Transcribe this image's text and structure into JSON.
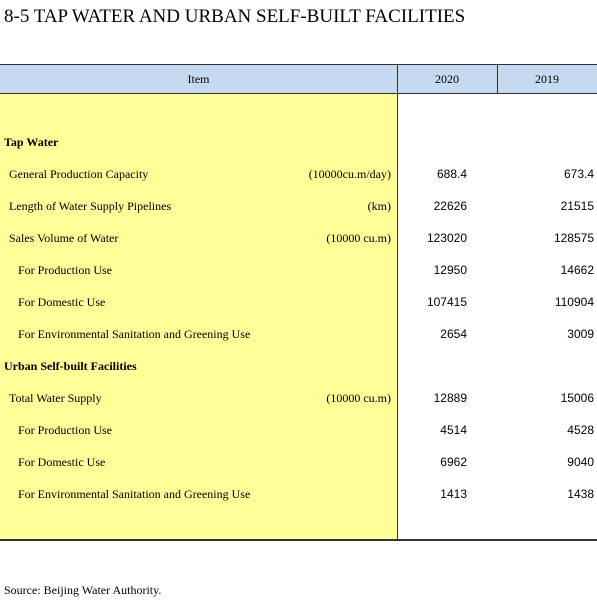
{
  "title": "8-5  TAP WATER AND URBAN SELF-BUILT FACILITIES",
  "table": {
    "header": [
      "Item",
      "2020",
      "2019"
    ],
    "sections": [
      {
        "title": "Tap Water",
        "items": [
          {
            "label": "General Production Capacity",
            "unit": "(10000cu.m/day)",
            "values": [
              688.4,
              673.4
            ]
          },
          {
            "label": "Length of Water Supply Pipelines",
            "unit": "(km)",
            "values": [
              22626,
              21515
            ]
          },
          {
            "label": "Sales Volume  of Water",
            "unit": "(10000 cu.m)",
            "values": [
              123020,
              128575
            ],
            "sub": [
              {
                "label": "For Production Use",
                "values": [
                  12950,
                  14662
                ]
              },
              {
                "label": "For Domestic Use",
                "values": [
                  107415,
                  110904
                ]
              },
              {
                "label": "For Environmental Sanitation and Greening Use",
                "values": [
                  2654,
                  3009
                ]
              }
            ]
          }
        ]
      },
      {
        "title": "Urban Self-built Facilities",
        "items": [
          {
            "label": "Total Water Supply",
            "unit": "(10000 cu.m)",
            "values": [
              12889,
              15006
            ],
            "sub": [
              {
                "label": "For Production Use",
                "values": [
                  4514,
                  4528
                ]
              },
              {
                "label": "For Domestic Use",
                "values": [
                  6962,
                  9040
                ]
              },
              {
                "label": "For Environmental Sanitation and Greening Use",
                "values": [
                  1413,
                  1438
                ]
              }
            ]
          }
        ]
      }
    ]
  },
  "source": "Source: Beijing Water Authority."
}
